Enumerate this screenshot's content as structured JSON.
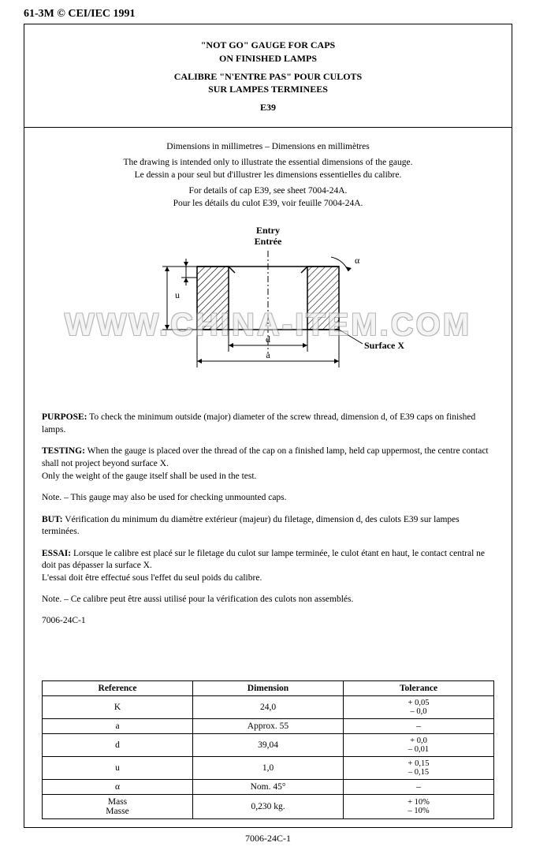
{
  "header": {
    "left": "61-3M © CEI/IEC 1991"
  },
  "title": {
    "line1": "\"NOT GO\" GAUGE FOR CAPS",
    "line2": "ON FINISHED LAMPS",
    "line3": "CALIBRE \"N'ENTRE PAS\" POUR CULOTS",
    "line4": "SUR LAMPES TERMINEES",
    "line5": "E39"
  },
  "intro": {
    "dim_heading": "Dimensions in millimetres – Dimensions en millimètres",
    "drawing_en": "The drawing is intended only to illustrate the essential dimensions of the gauge.",
    "drawing_fr": "Le dessin a pour seul but d'illustrer les dimensions essentielles du calibre.",
    "details_en": "For details of cap E39, see sheet 7004-24A.",
    "details_fr": "Pour les détails du culot E39, voir feuille 7004-24A."
  },
  "diagram": {
    "entry_en": "Entry",
    "entry_fr": "Entrée",
    "label_u": "u",
    "label_d": "d",
    "label_a": "a",
    "label_alpha": "α",
    "label_surface": "Surface X",
    "stroke": "#000000",
    "hatch_stroke": "#000000",
    "bg": "#ffffff"
  },
  "body": {
    "purpose_label": "PURPOSE:",
    "purpose_text": " To check the minimum outside (major) diameter of the screw thread, dimension d, of E39 caps on finished lamps.",
    "testing_label": "TESTING:",
    "testing_text": " When the gauge is placed over the thread of the cap on a finished lamp, held cap uppermost, the centre contact shall not project beyond surface X.",
    "testing_text2": "Only the weight of the gauge itself shall be used in the test.",
    "note_en": "Note. – This gauge may also be used for checking unmounted caps.",
    "but_label": "BUT:",
    "but_text": " Vérification du minimum du diamètre extérieur (majeur) du filetage, dimension d, des culots E39 sur lampes terminées.",
    "essai_label": "ESSAI:",
    "essai_text": " Lorsque le calibre est placé sur le filetage du culot sur lampe terminée, le culot étant en haut, le contact central ne doit pas dépasser la surface X.",
    "essai_text2": "L'essai doit être effectué sous l'effet du seul poids du calibre.",
    "note_fr": "Note. – Ce calibre peut être aussi utilisé pour la vérification des culots non assemblés.",
    "sheet_ref": "7006-24C-1"
  },
  "table": {
    "headers": {
      "ref": "Reference",
      "dim": "Dimension",
      "tol": "Tolerance"
    },
    "rows": [
      {
        "ref": "K",
        "dim": "24,0",
        "tol_up": "+ 0,05",
        "tol_dn": "– 0,0"
      },
      {
        "ref": "a",
        "dim": "Approx. 55",
        "tol_up": "–",
        "tol_dn": ""
      },
      {
        "ref": "d",
        "dim": "39,04",
        "tol_up": "+ 0,0",
        "tol_dn": "– 0,01"
      },
      {
        "ref": "u",
        "dim": "1,0",
        "tol_up": "+ 0,15",
        "tol_dn": "– 0,15"
      },
      {
        "ref": "α",
        "dim": "Nom. 45°",
        "tol_up": "–",
        "tol_dn": ""
      },
      {
        "ref": "Mass\nMasse",
        "dim": "0,230 kg.",
        "tol_up": "+ 10%",
        "tol_dn": "– 10%"
      }
    ]
  },
  "footer": {
    "ref": "7006-24C-1"
  },
  "watermark": "WWW.CHINA-ITEM.COM"
}
